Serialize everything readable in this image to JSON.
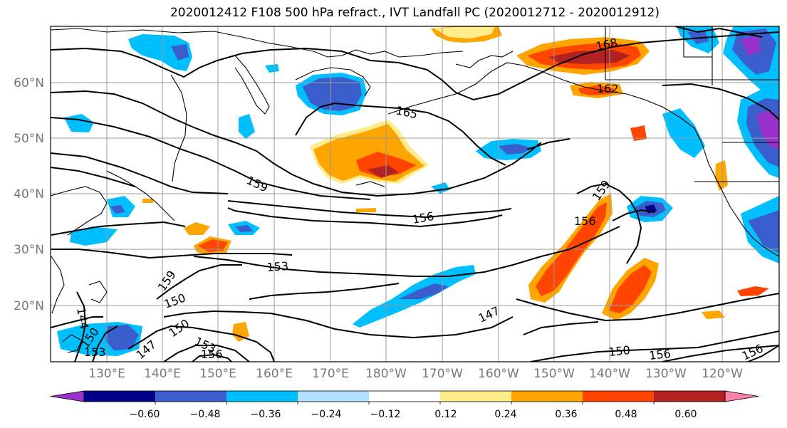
{
  "title": "2020012412 F108 500 hPa refract., IVT Landfall PC (2020012712 - 2020012912)",
  "map": {
    "lat_labels": [
      "60°N",
      "50°N",
      "40°N",
      "30°N",
      "20°N"
    ],
    "lon_labels": [
      "130°E",
      "140°E",
      "150°E",
      "160°E",
      "170°E",
      "180°W",
      "170°W",
      "160°W",
      "150°W",
      "140°W",
      "130°W",
      "120°W"
    ],
    "contour_labels": [
      "168",
      "165",
      "162",
      "159",
      "159",
      "156",
      "156",
      "153",
      "159",
      "150",
      "147",
      "144",
      "150",
      "153",
      "156",
      "150",
      "147",
      "150",
      "156",
      "156",
      "153"
    ],
    "layers": {
      "land_color": "#ffffff",
      "coastline_color": "#000000",
      "contour_color": "#000000",
      "grid_color": "#999999"
    }
  },
  "colorbar": {
    "colors": [
      "#9932CC",
      "#00008B",
      "#3A5FCD",
      "#00BFFF",
      "#B0E2FF",
      "#FFFFFF",
      "#FFEC8B",
      "#FFA500",
      "#FF4500",
      "#B22222",
      "#FF82AB"
    ],
    "tick_labels": [
      "−0.60",
      "−0.48",
      "−0.36",
      "−0.24",
      "−0.12",
      "0.12",
      "0.24",
      "0.36",
      "0.48",
      "0.60"
    ]
  }
}
